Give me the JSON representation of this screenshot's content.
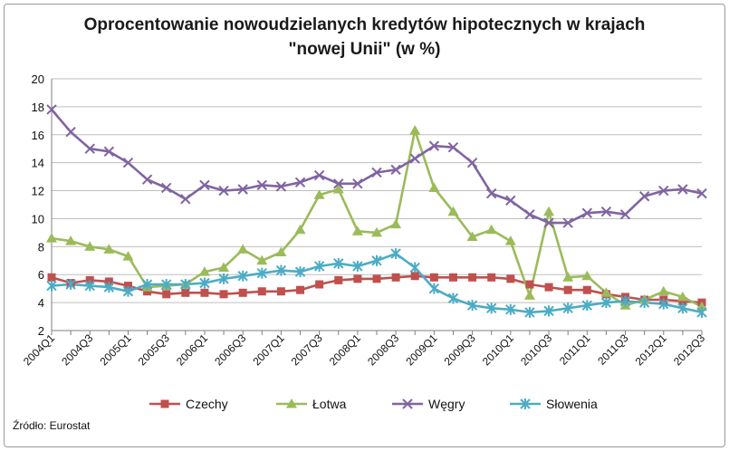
{
  "chart_data": {
    "type": "line",
    "title_line1": "Oprocentowanie nowoudzielanych kredytów hipotecznych w krajach",
    "title_line2": "\"nowej Unii\" (w %)",
    "source": "Źródło: Eurostat",
    "ylim": [
      2,
      20
    ],
    "yticks": [
      2,
      4,
      6,
      8,
      10,
      12,
      14,
      16,
      18,
      20
    ],
    "grid": "horizontal",
    "legend_position": "bottom",
    "x": [
      "2004Q1",
      "2004Q2",
      "2004Q3",
      "2004Q4",
      "2005Q1",
      "2005Q2",
      "2005Q3",
      "2005Q4",
      "2006Q1",
      "2006Q2",
      "2006Q3",
      "2006Q4",
      "2007Q1",
      "2007Q2",
      "2007Q3",
      "2007Q4",
      "2008Q1",
      "2008Q2",
      "2008Q3",
      "2008Q4",
      "2009Q1",
      "2009Q2",
      "2009Q3",
      "2009Q4",
      "2010Q1",
      "2010Q2",
      "2010Q3",
      "2010Q4",
      "2011Q1",
      "2011Q2",
      "2011Q3",
      "2011Q4",
      "2012Q1",
      "2012Q2",
      "2012Q3"
    ],
    "xtick_labels": [
      "2004Q1",
      "2004Q3",
      "2005Q1",
      "2005Q3",
      "2006Q1",
      "2006Q3",
      "2007Q1",
      "2007Q3",
      "2008Q1",
      "2008Q3",
      "2009Q1",
      "2009Q3",
      "2010Q1",
      "2010Q3",
      "2011Q1",
      "2011Q3",
      "2012Q1",
      "2012Q3"
    ],
    "series": [
      {
        "name": "Czechy",
        "color": "#c0504d",
        "marker": "square",
        "values": [
          5.8,
          5.4,
          5.6,
          5.5,
          5.2,
          4.8,
          4.6,
          4.7,
          4.7,
          4.6,
          4.7,
          4.8,
          4.8,
          4.9,
          5.3,
          5.6,
          5.7,
          5.7,
          5.8,
          5.9,
          5.8,
          5.8,
          5.8,
          5.8,
          5.7,
          5.3,
          5.1,
          4.9,
          4.9,
          4.6,
          4.4,
          4.2,
          4.2,
          4.1,
          4.0
        ]
      },
      {
        "name": "Łotwa",
        "color": "#9bbb59",
        "marker": "triangle",
        "values": [
          8.6,
          8.4,
          8.0,
          7.8,
          7.3,
          5.1,
          5.2,
          5.3,
          6.2,
          6.5,
          7.8,
          7.0,
          7.6,
          9.2,
          11.7,
          12.1,
          9.1,
          9.0,
          9.6,
          16.3,
          12.2,
          10.5,
          8.7,
          9.2,
          8.4,
          4.5,
          10.5,
          5.8,
          5.9,
          4.7,
          3.8,
          4.2,
          4.8,
          4.4,
          3.7
        ]
      },
      {
        "name": "Węgry",
        "color": "#8064a2",
        "marker": "x",
        "values": [
          17.8,
          16.2,
          15.0,
          14.8,
          14.0,
          12.8,
          12.2,
          11.4,
          12.4,
          12.0,
          12.1,
          12.4,
          12.3,
          12.6,
          13.1,
          12.5,
          12.5,
          13.3,
          13.5,
          14.3,
          15.2,
          15.1,
          14.0,
          11.8,
          11.3,
          10.3,
          9.7,
          9.7,
          10.4,
          10.5,
          10.3,
          11.6,
          12.0,
          12.1,
          11.8
        ]
      },
      {
        "name": "Słowenia",
        "color": "#4bacc6",
        "marker": "asterisk",
        "values": [
          5.2,
          5.3,
          5.2,
          5.1,
          4.8,
          5.3,
          5.3,
          5.3,
          5.4,
          5.7,
          5.9,
          6.1,
          6.3,
          6.2,
          6.6,
          6.8,
          6.6,
          7.0,
          7.5,
          6.5,
          5.0,
          4.3,
          3.8,
          3.6,
          3.5,
          3.3,
          3.4,
          3.6,
          3.8,
          4.0,
          4.1,
          4.0,
          3.9,
          3.6,
          3.3
        ]
      }
    ]
  }
}
